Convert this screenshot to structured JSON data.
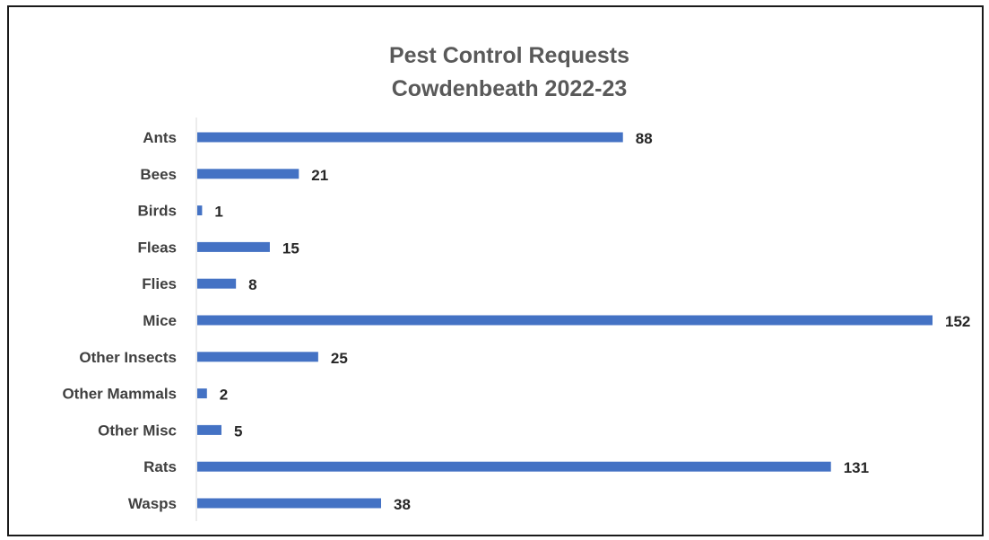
{
  "chart_data": {
    "type": "bar",
    "orientation": "horizontal",
    "title": "Pest Control Requests",
    "subtitle": "Cowdenbeath 2022-23",
    "categories": [
      "Ants",
      "Bees",
      "Birds",
      "Fleas",
      "Flies",
      "Mice",
      "Other Insects",
      "Other Mammals",
      "Other Misc",
      "Rats",
      "Wasps"
    ],
    "values": [
      88,
      21,
      1,
      15,
      8,
      152,
      25,
      2,
      5,
      131,
      38
    ],
    "bar_color": "#4472C4",
    "xlim": [
      0,
      152
    ],
    "grid": false,
    "legend": false,
    "data_labels": true
  }
}
